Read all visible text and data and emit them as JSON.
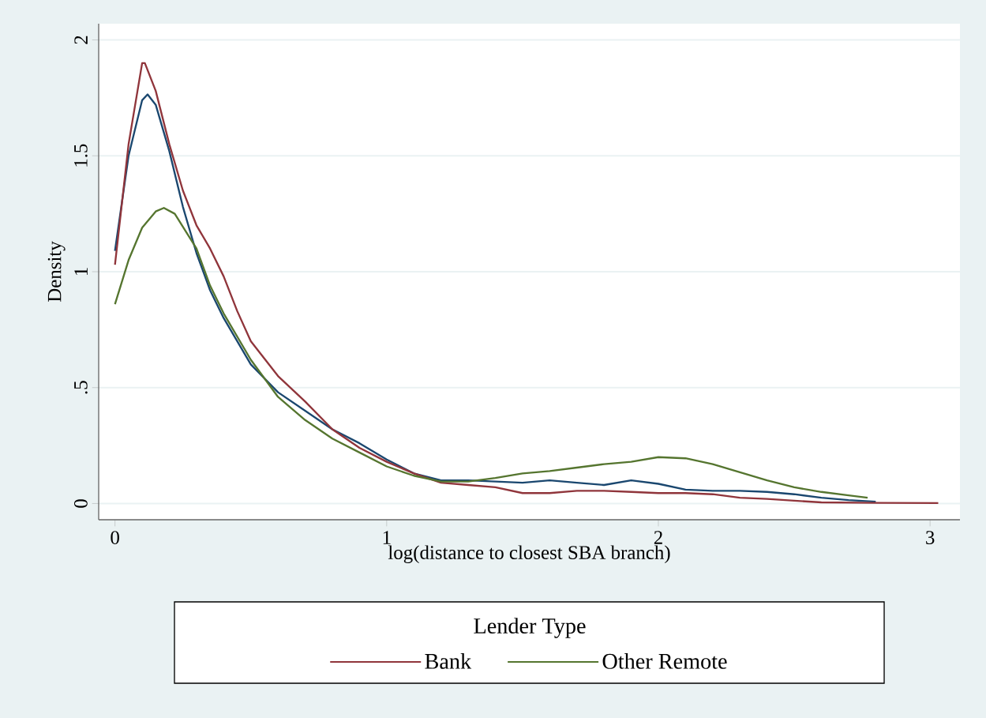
{
  "chart_data": {
    "type": "line",
    "xlabel": "log(distance to closest SBA branch)",
    "ylabel": "Density",
    "legend_title": "Lender Type",
    "legend": "bottom",
    "grid": "y",
    "marker": "none",
    "line_style": "solid",
    "xlim": [
      -0.06,
      3.11
    ],
    "ylim": [
      -0.07,
      2.07
    ],
    "xticks": [
      0,
      1,
      2,
      3
    ],
    "yticks": [
      0,
      {
        "value": 0.5,
        "label": ".5"
      },
      1,
      1.5,
      2
    ],
    "series": [
      {
        "color": "#1a476f",
        "x": [
          0,
          0.05,
          0.1,
          0.12,
          0.15,
          0.2,
          0.25,
          0.3,
          0.35,
          0.4,
          0.5,
          0.6,
          0.7,
          0.8,
          0.9,
          1.0,
          1.1,
          1.2,
          1.3,
          1.4,
          1.5,
          1.6,
          1.7,
          1.8,
          1.9,
          2.0,
          2.1,
          2.2,
          2.3,
          2.4,
          2.5,
          2.6,
          2.7,
          2.8
        ],
        "values": [
          1.09,
          1.5,
          1.74,
          1.765,
          1.72,
          1.52,
          1.28,
          1.08,
          0.92,
          0.8,
          0.6,
          0.48,
          0.4,
          0.32,
          0.26,
          0.19,
          0.13,
          0.1,
          0.1,
          0.095,
          0.09,
          0.1,
          0.09,
          0.08,
          0.1,
          0.085,
          0.06,
          0.055,
          0.055,
          0.05,
          0.04,
          0.025,
          0.015,
          0.008
        ]
      },
      {
        "name": "Bank",
        "color": "#90353b",
        "x": [
          0,
          0.05,
          0.1,
          0.11,
          0.15,
          0.2,
          0.25,
          0.3,
          0.35,
          0.4,
          0.45,
          0.5,
          0.6,
          0.7,
          0.8,
          0.9,
          1.0,
          1.1,
          1.2,
          1.3,
          1.4,
          1.5,
          1.6,
          1.7,
          1.8,
          1.9,
          2.0,
          2.1,
          2.2,
          2.3,
          2.4,
          2.5,
          2.6,
          2.8,
          3.03
        ],
        "values": [
          1.03,
          1.55,
          1.9,
          1.9,
          1.78,
          1.55,
          1.35,
          1.2,
          1.1,
          0.98,
          0.83,
          0.7,
          0.55,
          0.44,
          0.32,
          0.24,
          0.18,
          0.13,
          0.09,
          0.08,
          0.07,
          0.045,
          0.045,
          0.055,
          0.055,
          0.05,
          0.045,
          0.045,
          0.04,
          0.025,
          0.02,
          0.012,
          0.005,
          0.003,
          0.002
        ]
      },
      {
        "name": "Other Remote",
        "color": "#55752f",
        "x": [
          0,
          0.05,
          0.1,
          0.15,
          0.18,
          0.22,
          0.3,
          0.35,
          0.4,
          0.5,
          0.6,
          0.7,
          0.8,
          0.9,
          1.0,
          1.1,
          1.2,
          1.3,
          1.4,
          1.5,
          1.6,
          1.7,
          1.8,
          1.9,
          2.0,
          2.1,
          2.2,
          2.3,
          2.4,
          2.5,
          2.6,
          2.7,
          2.77
        ],
        "values": [
          0.86,
          1.05,
          1.19,
          1.26,
          1.275,
          1.25,
          1.1,
          0.94,
          0.82,
          0.62,
          0.46,
          0.36,
          0.28,
          0.22,
          0.16,
          0.12,
          0.095,
          0.095,
          0.11,
          0.13,
          0.14,
          0.155,
          0.17,
          0.18,
          0.2,
          0.195,
          0.17,
          0.135,
          0.1,
          0.07,
          0.05,
          0.035,
          0.025
        ]
      }
    ]
  }
}
